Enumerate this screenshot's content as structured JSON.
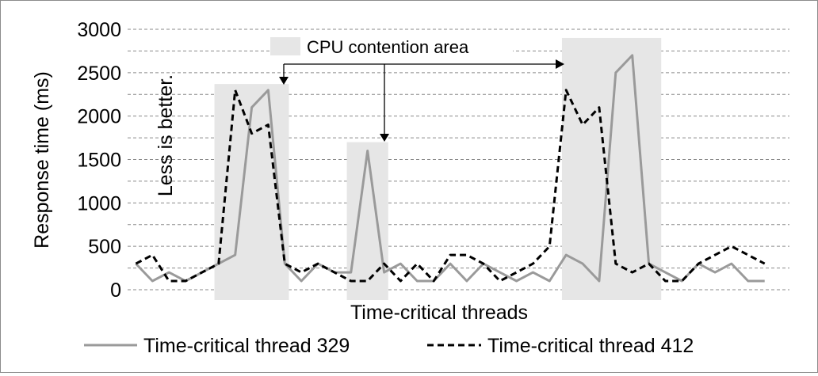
{
  "chart_data": {
    "type": "line",
    "title": "",
    "xlabel": "Time-critical threads",
    "ylabel": "Response  time (ms)",
    "ylim": [
      0,
      3000
    ],
    "yticks": [
      "0",
      "500",
      "1000",
      "1500",
      "2000",
      "2500",
      "3000"
    ],
    "grid": true,
    "legend_position": "bottom",
    "x": [
      1,
      2,
      3,
      4,
      5,
      6,
      7,
      8,
      9,
      10,
      11,
      12,
      13,
      14,
      15,
      16,
      17,
      18,
      19,
      20,
      21,
      22,
      23,
      24,
      25,
      26,
      27,
      28,
      29,
      30,
      31,
      32,
      33,
      34,
      35,
      36,
      37,
      38,
      39,
      40
    ],
    "series": [
      {
        "name": "Time-critical thread 329",
        "style": "solid",
        "color": "#9a9a9a",
        "values": [
          300,
          100,
          200,
          100,
          200,
          300,
          400,
          2100,
          2300,
          300,
          100,
          300,
          200,
          200,
          1600,
          200,
          300,
          100,
          100,
          300,
          100,
          300,
          200,
          100,
          200,
          100,
          400,
          300,
          100,
          2500,
          2700,
          300,
          200,
          100,
          300,
          200,
          300,
          100,
          100,
          null
        ]
      },
      {
        "name": "Time-critical thread 412",
        "style": "dashed",
        "color": "#000000",
        "values": [
          300,
          400,
          100,
          100,
          200,
          300,
          2300,
          1800,
          1900,
          300,
          200,
          300,
          200,
          100,
          100,
          300,
          100,
          300,
          100,
          400,
          400,
          300,
          100,
          200,
          300,
          500,
          2300,
          1900,
          2100,
          300,
          200,
          300,
          100,
          100,
          300,
          400,
          500,
          400,
          300,
          null
        ]
      }
    ],
    "annotations": {
      "shaded_label": "CPU contention area",
      "side_note": "Less is better."
    },
    "contention_regions": [
      {
        "x_from": 5.75,
        "x_to": 10.25,
        "y_top": 2370
      },
      {
        "x_from": 13.75,
        "x_to": 16.25,
        "y_top": 1700
      },
      {
        "x_from": 26.75,
        "x_to": 32.75,
        "y_top": 2900
      }
    ]
  }
}
